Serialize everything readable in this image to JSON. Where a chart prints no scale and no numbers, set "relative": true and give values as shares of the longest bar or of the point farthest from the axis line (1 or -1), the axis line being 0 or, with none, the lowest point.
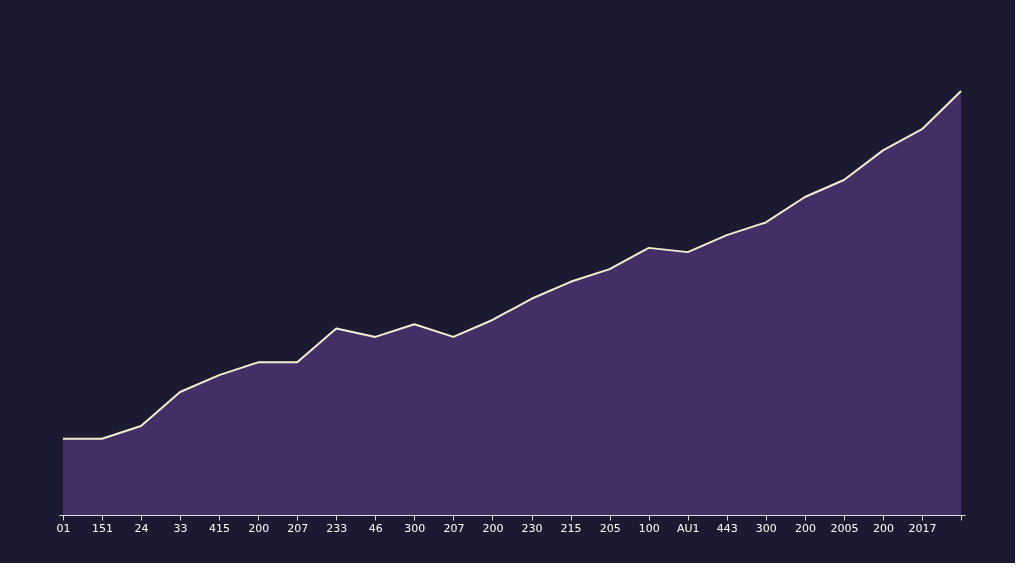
{
  "chart_data": {
    "type": "area",
    "relative": true,
    "categories": [
      "01",
      "151",
      "24",
      "33",
      "415",
      "200",
      "207",
      "233",
      "46",
      "300",
      "207",
      "200",
      "230",
      "215",
      "205",
      "100",
      "AU1",
      "443",
      "300",
      "200",
      "2005",
      "200",
      "2017",
      null
    ],
    "series": [
      {
        "color": "#4a3470",
        "values": [
          0.18,
          0.18,
          0.21,
          0.29,
          0.33,
          0.36,
          0.36,
          0.44,
          0.42,
          0.45,
          0.42,
          0.46,
          0.51,
          0.55,
          0.58,
          0.63,
          0.62,
          0.66,
          0.69,
          0.75,
          0.79,
          0.86,
          0.91,
          1.0
        ]
      }
    ],
    "grid": false
  }
}
